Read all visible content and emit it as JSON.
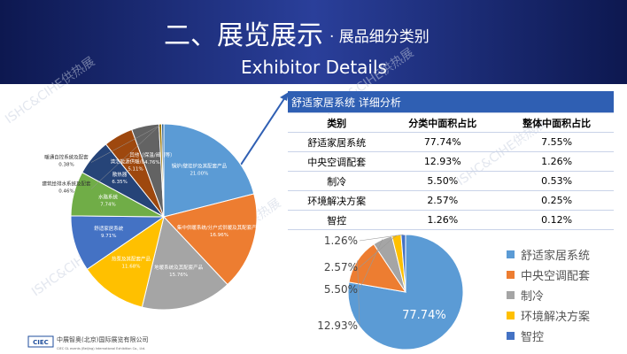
{
  "header": {
    "title": "二、展览展示",
    "subtitle": "· 展品细分类别",
    "english": "Exhibitor Details"
  },
  "watermark": "ISHC&CIHE供热展",
  "table": {
    "title": "舒适家居系统 详细分析",
    "columns": [
      "类别",
      "分类中面积占比",
      "整体中面积占比"
    ],
    "rows": [
      [
        "舒适家居系统",
        "77.74%",
        "7.55%"
      ],
      [
        "中央空调配套",
        "12.93%",
        "1.26%"
      ],
      [
        "制冷",
        "5.50%",
        "0.53%"
      ],
      [
        "环境解决方案",
        "2.57%",
        "0.25%"
      ],
      [
        "智控",
        "1.26%",
        "0.12%"
      ]
    ]
  },
  "footer": {
    "company": "中展智奥(北京)国际展览有限公司",
    "company_en": "CIEC GL events (Beijing) International Exhibition Co., Ltd.",
    "logo": "CIEC"
  },
  "chart_data": [
    {
      "type": "pie",
      "categories": [
        "锅炉/壁挂炉及其配套产品",
        "集中供暖系统/分户式供暖及其配套产品",
        "地暖系统及其配套产品",
        "热泵及其配套产品",
        "舒适家居系统",
        "水路系统",
        "散热器",
        "清洁能源供暖/热水产品",
        "其他（保温/阀门等）",
        "建筑给排水系统及配套",
        "暖通自控系统及配套"
      ],
      "values": [
        21.0,
        16.96,
        15.76,
        11.68,
        9.71,
        7.74,
        6.35,
        5.11,
        4.76,
        0.46,
        0.38
      ],
      "value_labels": [
        "21.00%",
        "16.96%",
        "15.76%",
        "11.68%",
        "9.71%",
        "7.74%",
        "6.35%",
        "5.11%",
        "4.76%",
        "0.46%",
        "0.38%"
      ],
      "colors": [
        "#5b9bd5",
        "#ed7d31",
        "#a5a5a5",
        "#ffc000",
        "#4472c4",
        "#70ad47",
        "#264478",
        "#9e480e",
        "#636363",
        "#997300",
        "#255e91"
      ]
    },
    {
      "type": "pie",
      "categories": [
        "舒适家居系统",
        "中央空调配套",
        "制冷",
        "环境解决方案",
        "智控"
      ],
      "values": [
        77.74,
        12.93,
        5.5,
        2.57,
        1.26
      ],
      "value_labels": [
        "77.74%",
        "12.93%",
        "5.50%",
        "2.57%",
        "1.26%"
      ],
      "colors": [
        "#5b9bd5",
        "#ed7d31",
        "#a5a5a5",
        "#ffc000",
        "#4472c4"
      ]
    }
  ]
}
